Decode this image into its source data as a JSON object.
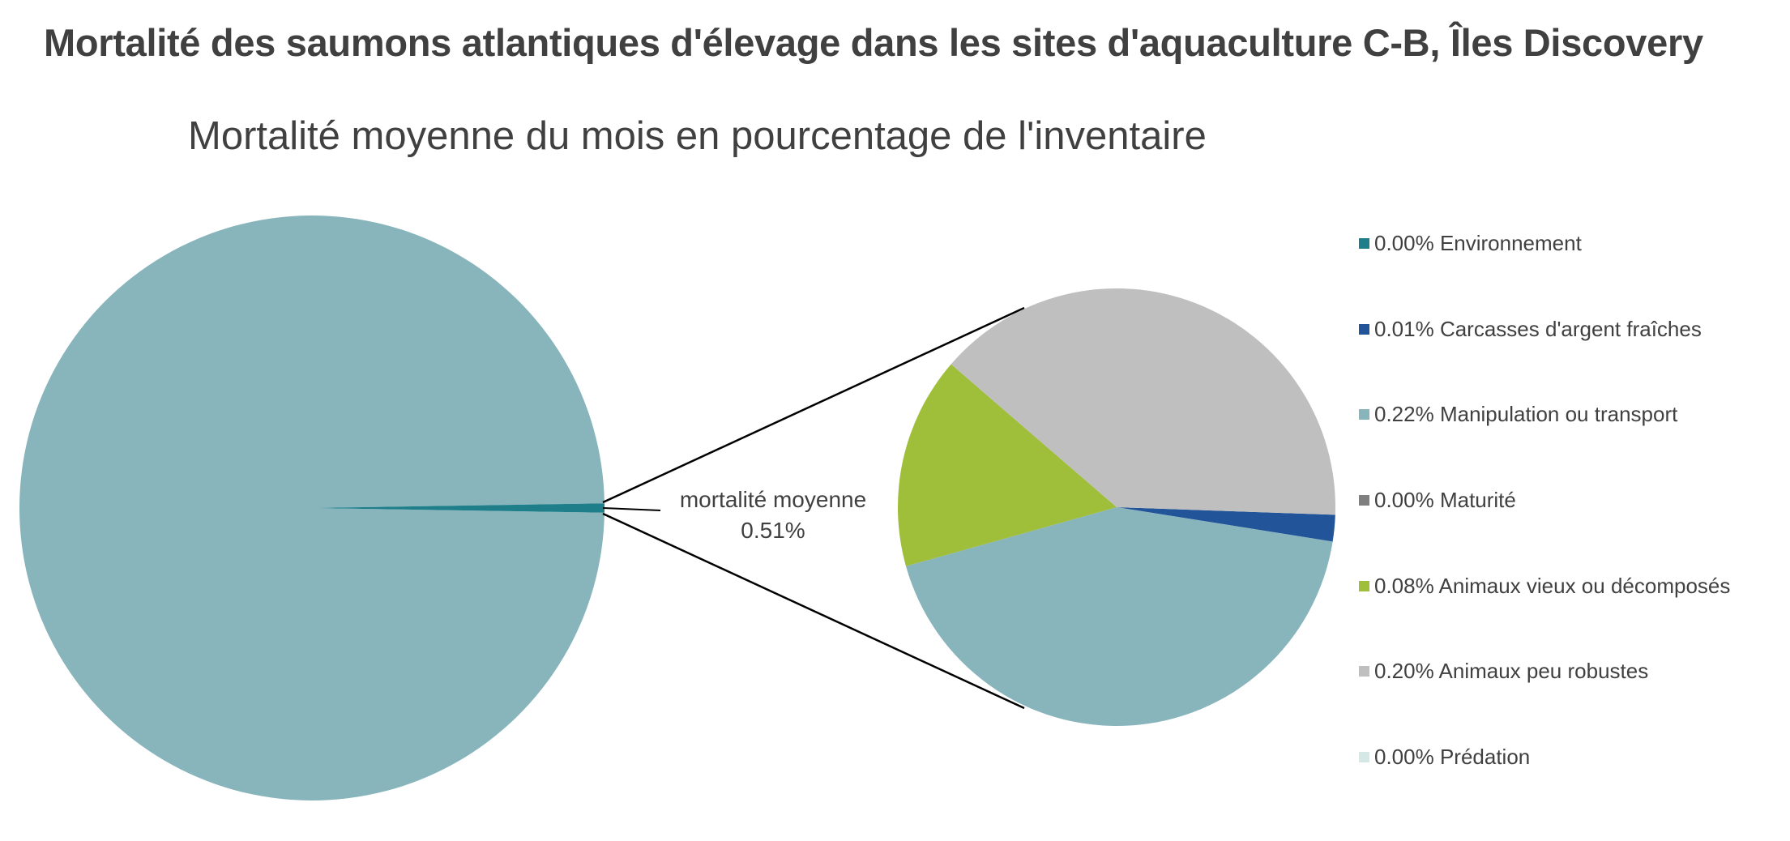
{
  "chart_data": {
    "type": "pie",
    "subtype": "pie-of-pie",
    "title": "Mortalité des saumons atlantiques d'élevage dans les sites d'aquaculture C-B, Îles Discovery",
    "subtitle": "Mortalité moyenne du mois en pourcentage de l'inventaire",
    "main_pie": {
      "other_label": "mortalité moyenne",
      "other_value_label": "0.51%",
      "other_value": 0.51,
      "remainder_value": 99.49,
      "remainder_color": "#88B4BC",
      "other_color": "#1E7F8A"
    },
    "secondary_pie": {
      "slices": [
        {
          "label": "0.00% Environnement",
          "name": "Environnement",
          "value": 0.0,
          "color": "#1E7F8A"
        },
        {
          "label": "0.01% Carcasses d'argent fraîches",
          "name": "Carcasses d'argent fraîches",
          "value": 0.01,
          "color": "#22549A"
        },
        {
          "label": "0.22% Manipulation ou transport",
          "name": "Manipulation ou transport",
          "value": 0.22,
          "color": "#88B4BC"
        },
        {
          "label": "0.00% Maturité",
          "name": "Maturité",
          "value": 0.0,
          "color": "#7F7F7F"
        },
        {
          "label": "0.08% Animaux vieux ou décomposés",
          "name": "Animaux vieux ou décomposés",
          "value": 0.08,
          "color": "#9FBE3A"
        },
        {
          "label": "0.20% Animaux peu robustes",
          "name": "Animaux peu robustes",
          "value": 0.2,
          "color": "#BFBFBF"
        },
        {
          "label": "0.00% Prédation",
          "name": "Prédation",
          "value": 0.0,
          "color": "#D6E8E5"
        }
      ]
    },
    "legend_position": "right",
    "unit": "%"
  }
}
